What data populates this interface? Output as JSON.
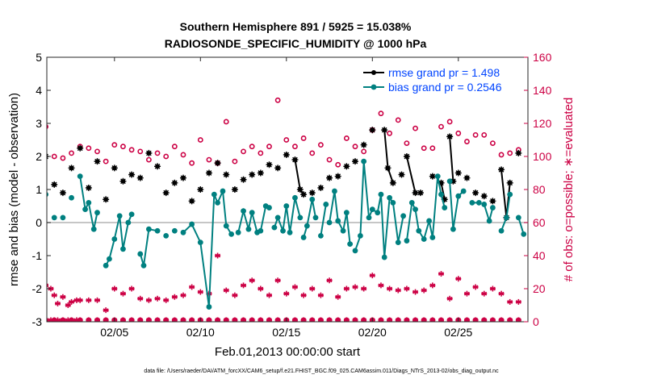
{
  "chart_data": {
    "type": "line",
    "title": [
      "Southern Hemisphere 891 / 5925 = 15.038%",
      "RADIOSONDE_SPECIFIC_HUMIDITY @ 1000 hPa"
    ],
    "xlabel": "Feb.01,2013 00:00:00 start",
    "ylabel": "rmse and bias (model - observation)",
    "ylabel_right": "# of obs: o=possible; ∗=evaluated",
    "footnote": "data file: /Users/raeder/DAI/ATM_forcXX/CAM6_setup/f.e21.FHIST_BGC.f09_025.CAM6assim.011/Diags_NTrS_2013-02/obs_diag_output.nc",
    "xlim": [
      1,
      29
    ],
    "ylim": [
      -3,
      5
    ],
    "ylim_right": [
      0,
      160
    ],
    "x_ticks": [
      5,
      10,
      15,
      20,
      25
    ],
    "x_tick_labels": [
      "02/05",
      "02/10",
      "02/15",
      "02/20",
      "02/25"
    ],
    "y_ticks": [
      -3,
      -2,
      -1,
      0,
      1,
      2,
      3,
      4,
      5
    ],
    "y_tick_labels": [
      "-3",
      "-2",
      "-1",
      "0",
      "1",
      "2",
      "3",
      "4",
      "5"
    ],
    "y2_ticks": [
      0,
      20,
      40,
      60,
      80,
      100,
      120,
      140,
      160
    ],
    "y2_tick_labels": [
      "0",
      "20",
      "40",
      "60",
      "80",
      "100",
      "120",
      "140",
      "160"
    ],
    "zero_line": 0,
    "legend": [
      "rmse grand pr = 1.498",
      "bias grand pr = 0.2546"
    ],
    "legend_position": "top-right",
    "colors": {
      "rmse": "#000000",
      "bias": "#008080",
      "obs": "#cc0044",
      "legend_text": "#0044ff",
      "zero": "#b3b3b3"
    },
    "series": [
      {
        "name": "rmse",
        "segments": [
          [
            [
              1.0,
              2.0
            ]
          ],
          [
            [
              1.5,
              1.15
            ]
          ],
          [
            [
              2.0,
              0.9
            ]
          ],
          [
            [
              2.5,
              1.65
            ]
          ],
          [
            [
              3.0,
              2.25
            ]
          ],
          [
            [
              3.5,
              1.05
            ]
          ],
          [
            [
              4.0,
              1.85
            ]
          ],
          [
            [
              4.5,
              0.7
            ]
          ],
          [
            [
              5.0,
              1.65
            ]
          ],
          [
            [
              5.5,
              1.25
            ]
          ],
          [
            [
              6.0,
              1.45
            ]
          ],
          [
            [
              6.5,
              1.35
            ]
          ],
          [
            [
              7.0,
              2.1
            ]
          ],
          [
            [
              7.5,
              1.7
            ]
          ],
          [
            [
              8.0,
              0.9
            ]
          ],
          [
            [
              8.5,
              1.2
            ]
          ],
          [
            [
              9.0,
              1.35
            ]
          ],
          [
            [
              9.5,
              0.65
            ]
          ],
          [
            [
              10.0,
              1.0
            ]
          ],
          [
            [
              10.5,
              1.5
            ]
          ],
          [
            [
              11.0,
              1.8
            ]
          ],
          [
            [
              11.5,
              1.45
            ]
          ],
          [
            [
              12.0,
              1.0
            ]
          ],
          [
            [
              12.5,
              1.3
            ]
          ],
          [
            [
              13.0,
              1.45
            ]
          ],
          [
            [
              13.5,
              1.5
            ]
          ],
          [
            [
              14.0,
              1.75
            ]
          ],
          [
            [
              14.5,
              1.65
            ]
          ],
          [
            [
              15.0,
              2.05
            ]
          ],
          [
            [
              15.5,
              1.9
            ],
            [
              15.8,
              1.0
            ],
            [
              16.0,
              0.85
            ]
          ],
          [
            [
              16.5,
              0.9
            ]
          ],
          [
            [
              17.0,
              1.05
            ]
          ],
          [
            [
              17.5,
              1.35
            ]
          ],
          [
            [
              18.0,
              1.4
            ]
          ],
          [
            [
              18.5,
              1.7
            ]
          ],
          [
            [
              19.0,
              1.85
            ]
          ],
          [
            [
              19.5,
              2.35
            ]
          ],
          [
            [
              20.0,
              2.8
            ]
          ],
          [
            [
              20.7,
              2.8
            ],
            [
              20.9,
              1.65
            ],
            [
              21.2,
              1.2
            ]
          ],
          [
            [
              21.7,
              1.45
            ]
          ],
          [
            [
              22.0,
              2.0
            ],
            [
              22.5,
              0.9
            ]
          ],
          [
            [
              22.8,
              0.9
            ]
          ],
          [
            [
              23.5,
              1.4
            ]
          ],
          [
            [
              24.0,
              1.2
            ],
            [
              24.2,
              0.7
            ]
          ],
          [
            [
              24.5,
              2.6
            ],
            [
              24.7,
              1.25
            ]
          ],
          [
            [
              25.0,
              1.5
            ]
          ],
          [
            [
              25.5,
              1.35
            ]
          ],
          [
            [
              26.0,
              0.9
            ]
          ],
          [
            [
              26.5,
              0.8
            ]
          ],
          [
            [
              27.0,
              0.65
            ]
          ],
          [
            [
              27.5,
              1.6
            ],
            [
              27.8,
              0.15
            ],
            [
              28.0,
              1.2
            ]
          ],
          [
            [
              28.5,
              2.1
            ]
          ]
        ]
      },
      {
        "name": "bias",
        "segments": [
          [
            [
              1.0,
              0.85
            ]
          ],
          [
            [
              1.5,
              0.15
            ]
          ],
          [
            [
              2.0,
              0.15
            ]
          ],
          [
            [
              2.5,
              0.75
            ]
          ],
          [
            [
              3.0,
              1.4
            ],
            [
              3.3,
              0.4
            ],
            [
              3.5,
              0.6
            ],
            [
              3.8,
              -0.2
            ],
            [
              4.0,
              0.3
            ]
          ],
          [
            [
              4.5,
              -1.3
            ],
            [
              4.7,
              -1.1
            ],
            [
              5.0,
              -0.5
            ],
            [
              5.3,
              0.2
            ],
            [
              5.5,
              -0.8
            ],
            [
              5.8,
              0.0
            ],
            [
              6.0,
              0.25
            ]
          ],
          [
            [
              6.5,
              -0.95
            ],
            [
              6.7,
              -1.3
            ],
            [
              7.0,
              -0.2
            ],
            [
              7.5,
              -0.25
            ]
          ],
          [
            [
              8.0,
              -0.4
            ]
          ],
          [
            [
              8.5,
              -0.25
            ]
          ],
          [
            [
              9.0,
              -0.3
            ],
            [
              9.5,
              -0.05
            ],
            [
              10.0,
              -0.6
            ],
            [
              10.5,
              -2.55
            ],
            [
              10.8,
              0.85
            ],
            [
              11.0,
              0.6
            ],
            [
              11.3,
              0.95
            ],
            [
              11.5,
              -0.1
            ],
            [
              11.8,
              -0.35
            ]
          ],
          [
            [
              12.2,
              -0.3
            ],
            [
              12.5,
              0.35
            ],
            [
              12.8,
              -0.2
            ],
            [
              13.0,
              0.3
            ],
            [
              13.3,
              -0.3
            ],
            [
              13.5,
              -0.25
            ],
            [
              13.8,
              0.5
            ],
            [
              14.0,
              0.45
            ]
          ],
          [
            [
              14.3,
              -0.15
            ],
            [
              14.5,
              0.15
            ],
            [
              14.8,
              -0.25
            ],
            [
              15.0,
              0.5
            ],
            [
              15.2,
              -0.3
            ],
            [
              15.5,
              0.75
            ],
            [
              15.8,
              0.15
            ]
          ],
          [
            [
              16.0,
              -0.45
            ],
            [
              16.2,
              -0.1
            ],
            [
              16.5,
              0.7
            ],
            [
              16.7,
              0.15
            ]
          ],
          [
            [
              17.0,
              -0.4
            ],
            [
              17.3,
              0.55
            ]
          ],
          [
            [
              17.5,
              0.0
            ],
            [
              17.8,
              0.95
            ],
            [
              18.0,
              0.05
            ],
            [
              18.3,
              -0.25
            ],
            [
              18.5,
              0.3
            ],
            [
              18.7,
              -0.65
            ]
          ],
          [
            [
              19.0,
              -0.85
            ],
            [
              19.3,
              -0.4
            ],
            [
              19.5,
              1.85
            ],
            [
              19.8,
              0.15
            ],
            [
              20.0,
              0.4
            ],
            [
              20.3,
              0.3
            ],
            [
              20.5,
              0.85
            ],
            [
              20.7,
              -1.05
            ],
            [
              21.0,
              0.75
            ],
            [
              21.2,
              0.6
            ],
            [
              21.5,
              -0.6
            ],
            [
              21.8,
              0.2
            ]
          ],
          [
            [
              22.0,
              -0.55
            ],
            [
              22.3,
              0.6
            ],
            [
              22.5,
              0.4
            ],
            [
              22.7,
              -0.25
            ],
            [
              23.0,
              -0.5
            ],
            [
              23.3,
              0.05
            ],
            [
              23.5,
              -0.45
            ],
            [
              23.8,
              1.4
            ],
            [
              24.0,
              0.85
            ],
            [
              24.2,
              0.45
            ]
          ],
          [
            [
              24.5,
              1.25
            ],
            [
              24.7,
              -0.2
            ],
            [
              25.0,
              0.8
            ],
            [
              25.3,
              0.95
            ]
          ],
          [
            [
              25.8,
              0.6
            ],
            [
              26.2,
              0.6
            ]
          ],
          [
            [
              26.5,
              0.55
            ],
            [
              26.8,
              0.05
            ],
            [
              27.0,
              0.45
            ]
          ],
          [
            [
              27.5,
              -0.25
            ],
            [
              27.8,
              0.15
            ],
            [
              28.0,
              0.85
            ]
          ],
          [
            [
              28.5,
              0.15
            ],
            [
              28.8,
              -0.35
            ]
          ]
        ]
      }
    ],
    "obs_possible": [
      [
        1.0,
        118
      ],
      [
        1.5,
        100
      ],
      [
        2.0,
        99
      ],
      [
        2.5,
        102
      ],
      [
        3.0,
        106
      ],
      [
        3.5,
        105
      ],
      [
        4.0,
        103
      ],
      [
        4.5,
        97
      ],
      [
        5.0,
        107
      ],
      [
        5.5,
        106
      ],
      [
        6.0,
        104
      ],
      [
        6.5,
        103
      ],
      [
        7.0,
        98
      ],
      [
        7.5,
        102
      ],
      [
        8.0,
        100
      ],
      [
        8.5,
        106
      ],
      [
        9.0,
        101
      ],
      [
        9.5,
        96
      ],
      [
        10.0,
        110
      ],
      [
        10.5,
        98
      ],
      [
        11.0,
        96
      ],
      [
        11.5,
        121
      ],
      [
        12.0,
        97
      ],
      [
        12.5,
        103
      ],
      [
        13.0,
        106
      ],
      [
        13.5,
        102
      ],
      [
        14.0,
        106
      ],
      [
        14.5,
        134
      ],
      [
        15.0,
        110
      ],
      [
        15.5,
        106
      ],
      [
        16.0,
        111
      ],
      [
        16.5,
        102
      ],
      [
        17.0,
        107
      ],
      [
        17.5,
        98
      ],
      [
        18.0,
        95
      ],
      [
        18.5,
        111
      ],
      [
        19.0,
        106
      ],
      [
        19.5,
        103
      ],
      [
        20.0,
        116
      ],
      [
        20.5,
        126
      ],
      [
        21.0,
        114
      ],
      [
        21.5,
        122
      ],
      [
        22.0,
        108
      ],
      [
        22.5,
        117
      ],
      [
        23.0,
        105
      ],
      [
        23.5,
        105
      ],
      [
        24.0,
        118
      ],
      [
        24.5,
        121
      ],
      [
        25.0,
        114
      ],
      [
        25.5,
        109
      ],
      [
        26.0,
        113
      ],
      [
        26.5,
        113
      ],
      [
        27.0,
        108
      ],
      [
        27.5,
        101
      ],
      [
        28.0,
        102
      ],
      [
        28.5,
        104
      ]
    ],
    "obs_evaluated": [
      [
        1.0,
        22
      ],
      [
        1.3,
        20
      ],
      [
        1.5,
        16
      ],
      [
        1.7,
        11
      ],
      [
        2.0,
        15
      ],
      [
        2.3,
        10
      ],
      [
        2.5,
        12
      ],
      [
        2.8,
        13
      ],
      [
        3.0,
        13
      ],
      [
        3.5,
        13
      ],
      [
        4.0,
        13
      ],
      [
        4.5,
        7
      ],
      [
        5.0,
        20
      ],
      [
        5.5,
        17
      ],
      [
        6.0,
        20
      ],
      [
        6.5,
        14
      ],
      [
        7.0,
        13
      ],
      [
        7.5,
        14
      ],
      [
        8.0,
        13
      ],
      [
        8.5,
        15
      ],
      [
        9.0,
        16
      ],
      [
        9.5,
        21
      ],
      [
        10.0,
        18
      ],
      [
        10.5,
        17
      ],
      [
        11.0,
        40
      ],
      [
        11.5,
        19
      ],
      [
        12.0,
        16
      ],
      [
        12.5,
        22
      ],
      [
        13.0,
        25
      ],
      [
        13.5,
        20
      ],
      [
        14.0,
        16
      ],
      [
        14.5,
        25
      ],
      [
        15.0,
        17
      ],
      [
        15.5,
        21
      ],
      [
        16.0,
        16
      ],
      [
        16.5,
        20
      ],
      [
        17.0,
        16
      ],
      [
        17.5,
        25
      ],
      [
        18.0,
        15
      ],
      [
        18.5,
        20
      ],
      [
        19.0,
        21
      ],
      [
        19.5,
        20
      ],
      [
        20.0,
        28
      ],
      [
        20.5,
        22
      ],
      [
        21.0,
        20
      ],
      [
        21.5,
        19
      ],
      [
        22.0,
        20
      ],
      [
        22.5,
        18
      ],
      [
        23.0,
        19
      ],
      [
        23.5,
        22
      ],
      [
        24.0,
        29
      ],
      [
        24.5,
        14
      ],
      [
        25.0,
        26
      ],
      [
        25.5,
        17
      ],
      [
        26.0,
        21
      ],
      [
        26.5,
        17
      ],
      [
        27.0,
        20
      ],
      [
        27.5,
        17
      ],
      [
        28.0,
        12
      ],
      [
        28.5,
        12
      ]
    ]
  }
}
